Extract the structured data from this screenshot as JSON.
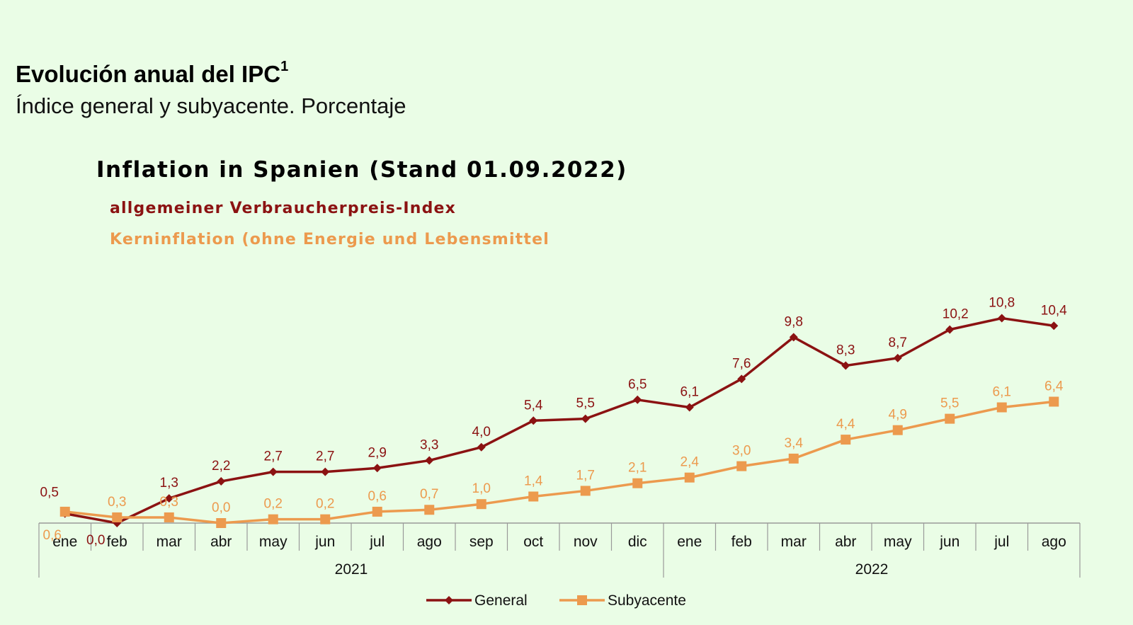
{
  "header": {
    "title": "Evolución anual del IPC",
    "title_sup": "1",
    "subtitle": "Índice general y subyacente. Porcentaje"
  },
  "annotation": {
    "headline": "Inflation in Spanien (Stand 01.09.2022)",
    "general_note": "allgemeiner Verbraucherpreis-Index",
    "core_note": "Kerninflation (ohne Energie und Lebensmittel"
  },
  "chart_data": {
    "type": "line",
    "categories": [
      "ene",
      "feb",
      "mar",
      "abr",
      "may",
      "jun",
      "jul",
      "ago",
      "sep",
      "oct",
      "nov",
      "dic",
      "ene",
      "feb",
      "mar",
      "abr",
      "may",
      "jun",
      "jul",
      "ago"
    ],
    "year_groups": [
      {
        "label": "2021",
        "count": 12
      },
      {
        "label": "2022",
        "count": 8
      }
    ],
    "series": [
      {
        "name": "General",
        "color": "#8b1212",
        "marker": "diamond",
        "values": [
          0.5,
          0.0,
          1.3,
          2.2,
          2.7,
          2.7,
          2.9,
          3.3,
          4.0,
          5.4,
          5.5,
          6.5,
          6.1,
          7.6,
          9.8,
          8.3,
          8.7,
          10.2,
          10.8,
          10.4
        ],
        "labels": [
          "0,5",
          "0,0",
          "1,3",
          "2,2",
          "2,7",
          "2,7",
          "2,9",
          "3,3",
          "4,0",
          "5,4",
          "5,5",
          "6,5",
          "6,1",
          "7,6",
          "9,8",
          "8,3",
          "8,7",
          "10,2",
          "10,8",
          "10,4"
        ]
      },
      {
        "name": "Subyacente",
        "color": "#ec9a4e",
        "marker": "square",
        "values": [
          0.6,
          0.3,
          0.3,
          0.0,
          0.2,
          0.2,
          0.6,
          0.7,
          1.0,
          1.4,
          1.7,
          2.1,
          2.4,
          3.0,
          3.4,
          4.4,
          4.9,
          5.5,
          6.1,
          6.4
        ],
        "labels": [
          "0,6",
          "0,3",
          "0,3",
          "0,0",
          "0,2",
          "0,2",
          "0,6",
          "0,7",
          "1,0",
          "1,4",
          "1,7",
          "2,1",
          "2,4",
          "3,0",
          "3,4",
          "4,4",
          "4,9",
          "5,5",
          "6,1",
          "6,4"
        ]
      }
    ],
    "ylim": [
      0,
      11
    ],
    "grid": false,
    "legend_position": "bottom"
  }
}
